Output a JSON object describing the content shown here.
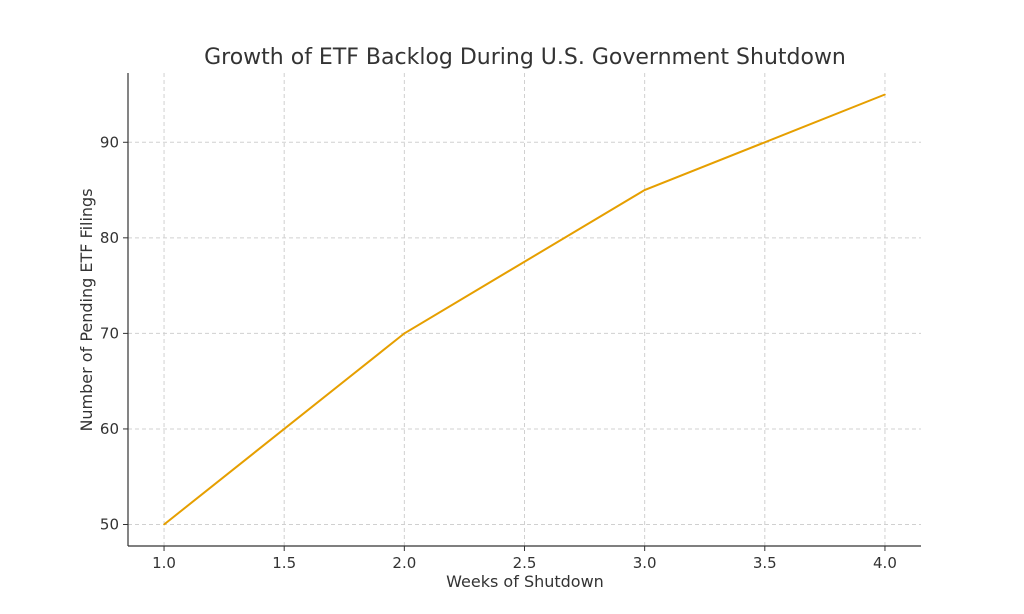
{
  "chart_data": {
    "type": "line",
    "title": "Growth of ETF Backlog During U.S. Government Shutdown",
    "xlabel": "Weeks of Shutdown",
    "ylabel": "Number of Pending ETF Filings",
    "x": [
      1,
      2,
      3,
      4
    ],
    "series": [
      {
        "name": "Pending ETF Filings",
        "values": [
          50,
          70,
          85,
          95
        ],
        "color": "#e69f00"
      }
    ],
    "xlim": [
      0.85,
      4.15
    ],
    "ylim": [
      47.75,
      97.25
    ],
    "xticks": [
      1.0,
      1.5,
      2.0,
      2.5,
      3.0,
      3.5,
      4.0
    ],
    "xtick_labels": [
      "1.0",
      "1.5",
      "2.0",
      "2.5",
      "3.0",
      "3.5",
      "4.0"
    ],
    "yticks": [
      50,
      60,
      70,
      80,
      90
    ],
    "ytick_labels": [
      "50",
      "60",
      "70",
      "80",
      "90"
    ],
    "grid": true,
    "legend": "none"
  }
}
